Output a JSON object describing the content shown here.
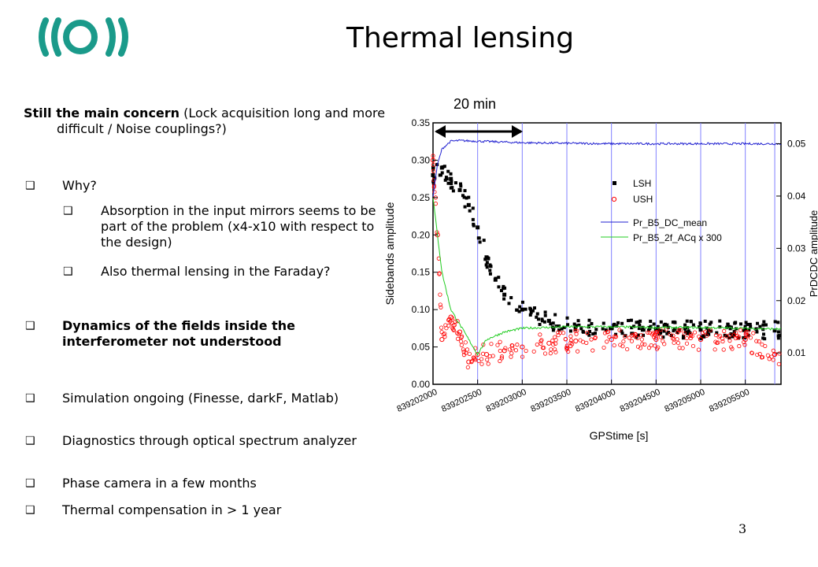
{
  "slide": {
    "title": "Thermal lensing",
    "page_number": "3",
    "bullet_glyph": "❑"
  },
  "bullets": [
    {
      "lead": "Still the main concern",
      "rest": " (Lock acquisition long and more difficult / Noise couplings?)"
    },
    {
      "text": "Why?"
    },
    {
      "text": "Absorption in the input mirrors seems to be part of the problem (x4-x10 with respect to the design)"
    },
    {
      "text": "Also thermal lensing in the Faraday?"
    },
    {
      "text": "Dynamics of the fields inside the interferometer not understood"
    },
    {
      "text": "Simulation ongoing (Finesse, darkF, Matlab)"
    },
    {
      "text": "Diagnostics through optical spectrum analyzer"
    },
    {
      "text": "Phase camera in a few months"
    },
    {
      "text": "Thermal compensation in > 1 year"
    }
  ],
  "chart_data": {
    "type": "scatter",
    "annotation": "20 min",
    "xlabel": "GPStime [s]",
    "ylabel": "Sidebands amplitude",
    "y2label": "PrDCDC amplitude",
    "xlim": [
      839202000,
      839205900
    ],
    "ylim": [
      0,
      0.35
    ],
    "y2lim": [
      0.004,
      0.054
    ],
    "x_ticks": [
      839202000,
      839202500,
      839203000,
      839203500,
      839204000,
      839204500,
      839205000,
      839205500
    ],
    "y_ticks": [
      0.0,
      0.05,
      0.1,
      0.15,
      0.2,
      0.25,
      0.3,
      0.35
    ],
    "y2_ticks": [
      0.01,
      0.02,
      0.03,
      0.04,
      0.05
    ],
    "vertical_lines_x": [
      839202500,
      839203000,
      839203500,
      839204000,
      839204500,
      839205000,
      839205500,
      839205830
    ],
    "legend_position": "center-right",
    "colors": {
      "LSH": "#000000",
      "USH": "#ff0000",
      "Pr_B5_DC_mean": "#2020d0",
      "Pr_B5_2f_ACq x 300": "#22cc22",
      "grid": "#8080ff"
    },
    "series": [
      {
        "name": "LSH",
        "marker": "square",
        "axis": "left",
        "x": [
          839202000,
          839202100,
          839202200,
          839202300,
          839202400,
          839202500,
          839202600,
          839202700,
          839202800,
          839203000,
          839203300,
          839203600,
          839204000,
          839204500,
          839205000,
          839205500,
          839205830
        ],
        "y": [
          0.28,
          0.29,
          0.275,
          0.26,
          0.24,
          0.21,
          0.17,
          0.14,
          0.12,
          0.1,
          0.085,
          0.078,
          0.075,
          0.074,
          0.073,
          0.073,
          0.072
        ]
      },
      {
        "name": "USH",
        "marker": "circle-open",
        "axis": "left",
        "x": [
          839202000,
          839202050,
          839202100,
          839202200,
          839202300,
          839202400,
          839202500,
          839202600,
          839202800,
          839203000,
          839203300,
          839203600,
          839204000,
          839204500,
          839205000,
          839205500,
          839205830
        ],
        "y": [
          0.3,
          0.2,
          0.06,
          0.09,
          0.07,
          0.03,
          0.04,
          0.04,
          0.045,
          0.05,
          0.055,
          0.058,
          0.06,
          0.06,
          0.06,
          0.06,
          0.04
        ]
      },
      {
        "name": "Pr_B5_DC_mean",
        "marker": "line",
        "axis": "right",
        "x": [
          839202000,
          839202050,
          839202100,
          839202200,
          839202300,
          839202500,
          839203000,
          839203500,
          839204000,
          839204500,
          839205000,
          839205500,
          839205830
        ],
        "y": [
          0.04,
          0.046,
          0.049,
          0.0505,
          0.0506,
          0.0505,
          0.0502,
          0.0501,
          0.05,
          0.05,
          0.05,
          0.05,
          0.05
        ]
      },
      {
        "name": "Pr_B5_2f_ACq x 300",
        "marker": "line",
        "axis": "left",
        "x": [
          839202000,
          839202050,
          839202100,
          839202200,
          839202300,
          839202400,
          839202500,
          839202600,
          839202800,
          839203000,
          839203500,
          839204000,
          839204500,
          839205000,
          839205500,
          839205830
        ],
        "y": [
          0.25,
          0.2,
          0.15,
          0.1,
          0.08,
          0.06,
          0.04,
          0.06,
          0.07,
          0.075,
          0.077,
          0.077,
          0.076,
          0.076,
          0.075,
          0.074
        ]
      }
    ]
  }
}
